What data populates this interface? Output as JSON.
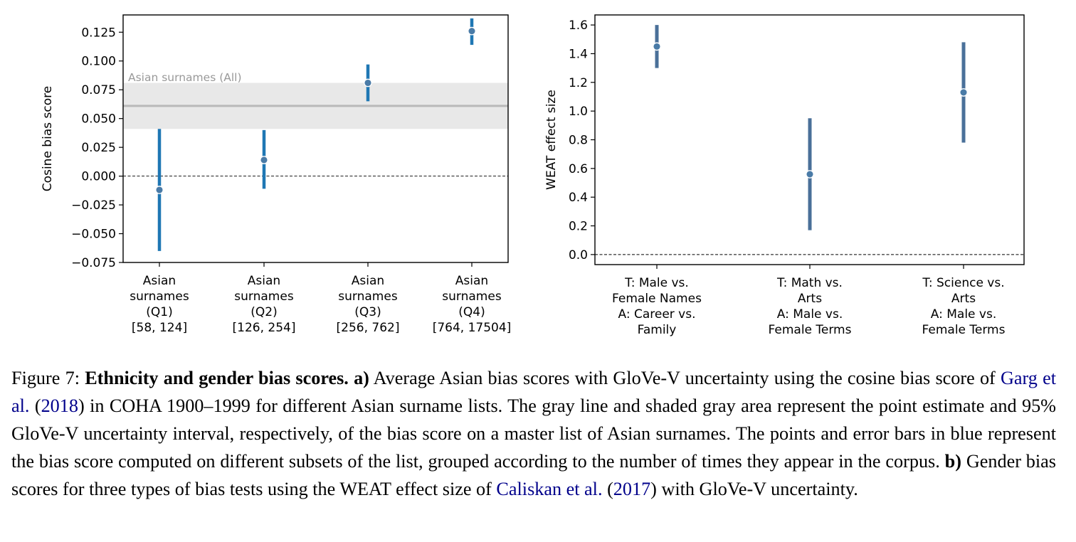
{
  "chart_data": [
    {
      "panel": "a",
      "type": "scatter",
      "title": "",
      "xlabel": "",
      "ylabel": "Cosine bias score",
      "ylim": [
        -0.075,
        0.14
      ],
      "yticks": [
        "0.125",
        "0.100",
        "0.075",
        "0.050",
        "0.025",
        "0.000",
        "−0.025",
        "−0.050",
        "−0.075"
      ],
      "ytick_values": [
        0.125,
        0.1,
        0.075,
        0.05,
        0.025,
        0.0,
        -0.025,
        -0.05,
        -0.075
      ],
      "categories": [
        [
          "Asian",
          "surnames",
          "(Q1)",
          "[58, 124]"
        ],
        [
          "Asian",
          "surnames",
          "(Q2)",
          "[126, 254]"
        ],
        [
          "Asian",
          "surnames",
          "(Q3)",
          "[256, 762]"
        ],
        [
          "Asian",
          "surnames",
          "(Q4)",
          "[764, 17504]"
        ]
      ],
      "points": [
        {
          "y": -0.012,
          "low": -0.065,
          "high": 0.041
        },
        {
          "y": 0.014,
          "low": -0.011,
          "high": 0.04
        },
        {
          "y": 0.081,
          "low": 0.065,
          "high": 0.097
        },
        {
          "y": 0.126,
          "low": 0.114,
          "high": 0.137
        }
      ],
      "reference": {
        "label": "Asian surnames (All)",
        "value": 0.061,
        "low": 0.041,
        "high": 0.081
      },
      "zero_line": true,
      "grid": false,
      "colors": {
        "marker": "#4a7ba7",
        "errorbar": "#1f77b4",
        "reference_line": "#b9b9b9",
        "reference_band": "#e8e8e8",
        "reference_label": "#999999"
      }
    },
    {
      "panel": "b",
      "type": "scatter",
      "title": "",
      "xlabel": "",
      "ylabel": "WEAT effect size",
      "ylim": [
        -0.07,
        1.67
      ],
      "yticks": [
        "1.6",
        "1.4",
        "1.2",
        "1.0",
        "0.8",
        "0.6",
        "0.4",
        "0.2",
        "0.0"
      ],
      "ytick_values": [
        1.6,
        1.4,
        1.2,
        1.0,
        0.8,
        0.6,
        0.4,
        0.2,
        0.0
      ],
      "categories": [
        [
          "T: Male vs.",
          "Female Names",
          "A: Career vs.",
          "Family"
        ],
        [
          "T: Math vs.",
          "Arts",
          "A: Male vs.",
          "Female Terms"
        ],
        [
          "T: Science vs.",
          "Arts",
          "A: Male vs.",
          "Female Terms"
        ]
      ],
      "points": [
        {
          "y": 1.45,
          "low": 1.3,
          "high": 1.6
        },
        {
          "y": 0.56,
          "low": 0.17,
          "high": 0.95
        },
        {
          "y": 1.13,
          "low": 0.78,
          "high": 1.48
        }
      ],
      "zero_line": true,
      "grid": false,
      "colors": {
        "marker": "#4a7ba7",
        "errorbar": "#4a7099"
      }
    }
  ],
  "caption": {
    "figure_label": "Figure 7:",
    "bold_title": "Ethnicity and gender bias scores.",
    "a_label": "a)",
    "text_1": " Average Asian bias scores with GloVe-V uncertainty using the cosine bias score of ",
    "cite_1_author": "Garg et al.",
    "cite_1_open": " (",
    "cite_1_year": "2018",
    "text_2": ") in COHA 1900–1999 for different Asian surname lists. The gray line and shaded gray area represent the point estimate and 95% GloVe-V uncertainty interval, respectively, of the bias score on a master list of Asian surnames. The points and error bars in blue represent the bias score computed on different subsets of the list, grouped according to the number of times they appear in the corpus. ",
    "b_label": "b)",
    "text_3": " Gender bias scores for three types of bias tests using the WEAT effect size of ",
    "cite_2_author": "Caliskan et al.",
    "cite_2_open": " (",
    "cite_2_year": "2017",
    "text_4": ") with GloVe-V uncertainty."
  }
}
